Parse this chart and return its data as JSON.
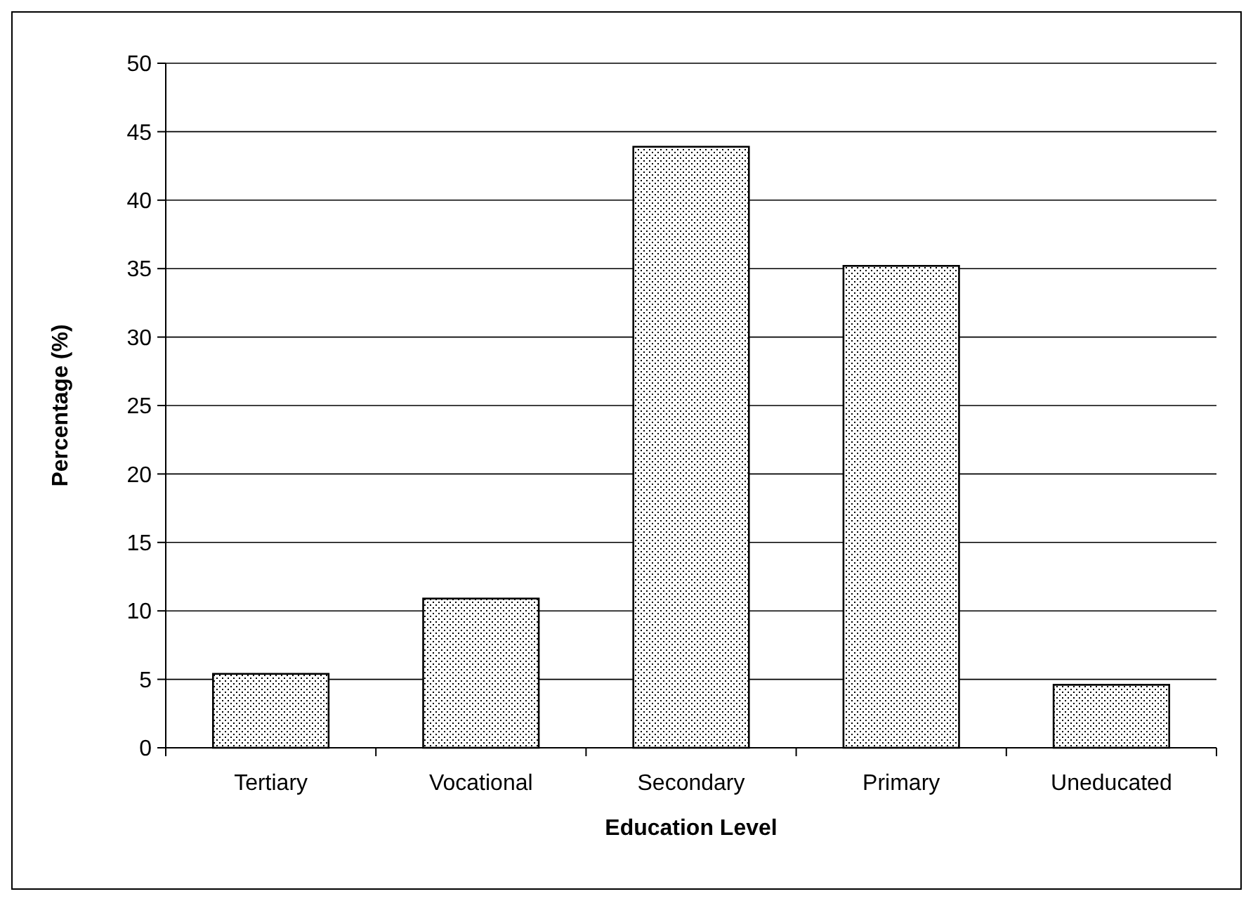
{
  "chart_data": {
    "type": "bar",
    "xlabel": "Education Level",
    "ylabel": "Percentage (%)",
    "categories": [
      "Tertiary",
      "Vocational",
      "Secondary",
      "Primary",
      "Uneducated"
    ],
    "values": [
      5.4,
      10.9,
      43.9,
      35.2,
      4.6
    ],
    "color": "#000000",
    "ylim": [
      0,
      50
    ],
    "yticks": [
      0,
      5,
      10,
      15,
      20,
      25,
      30,
      35,
      40,
      45,
      50
    ],
    "grid": "y"
  }
}
